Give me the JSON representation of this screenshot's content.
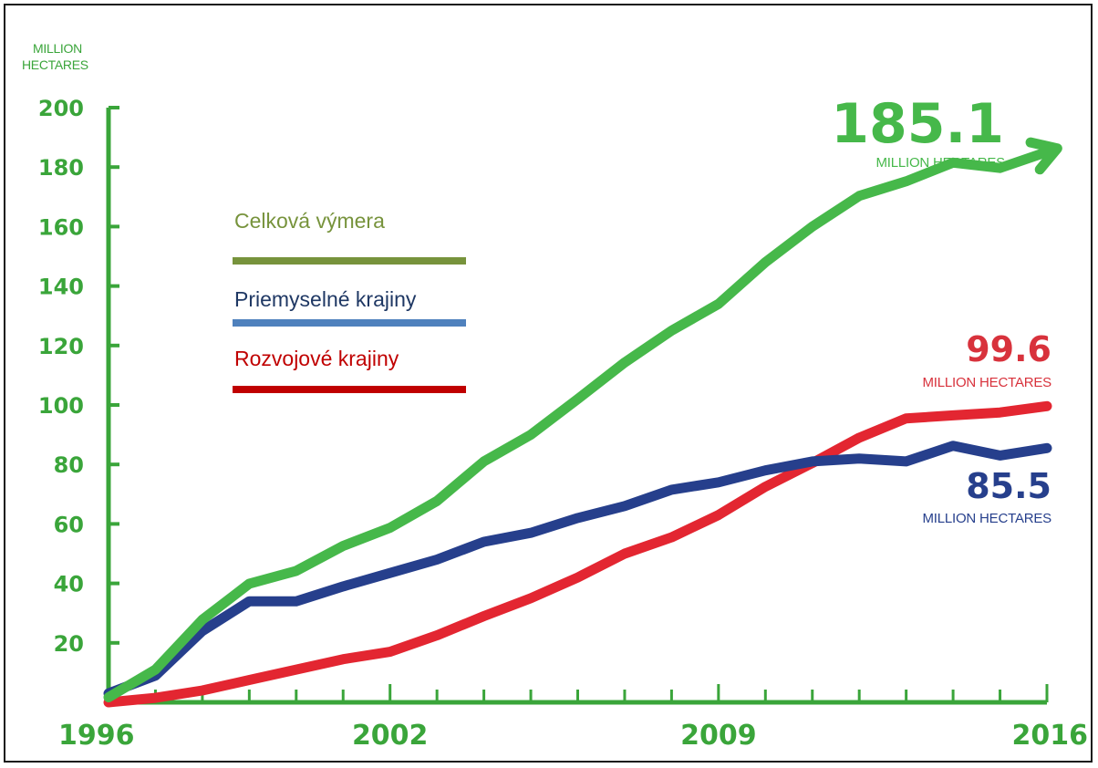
{
  "chart_data": {
    "type": "line",
    "y_unit_label": [
      "MILLION",
      "HECTARES"
    ],
    "x": [
      1996,
      1997,
      1998,
      1999,
      2000,
      2001,
      2002,
      2003,
      2004,
      2005,
      2006,
      2007,
      2008,
      2009,
      2010,
      2011,
      2012,
      2013,
      2014,
      2015,
      2016
    ],
    "x_tick_labels": [
      "1996",
      "2002",
      "2009",
      "2016"
    ],
    "x_tick_values": [
      1996,
      2002,
      2009,
      2016
    ],
    "y_tick_values": [
      20,
      40,
      60,
      80,
      100,
      120,
      140,
      160,
      180,
      200
    ],
    "ylim": [
      0,
      200
    ],
    "xlim": [
      1996,
      2016
    ],
    "series": [
      {
        "key": "total",
        "name": "Celková výmera",
        "color": "#46b84a",
        "legend_color": "#77933c",
        "values": [
          1.7,
          11,
          27.8,
          39.9,
          44.2,
          52.6,
          58.7,
          67.7,
          81,
          90,
          102,
          114.3,
          125,
          134,
          148,
          160,
          170.3,
          175.2,
          181.5,
          179.7,
          185.1
        ]
      },
      {
        "key": "industrial",
        "name": "Priemyselné krajiny",
        "color": "#263f8c",
        "legend_color": "#4f81bd",
        "values": [
          3,
          9,
          24,
          34,
          34,
          39,
          43.5,
          48,
          54,
          57,
          62,
          66,
          71.5,
          74,
          78,
          81,
          82,
          81,
          86.3,
          83,
          85.5
        ]
      },
      {
        "key": "developing",
        "name": "Rozvojové krajiny",
        "color": "#e32631",
        "legend_color": "#c00000",
        "values": [
          0,
          1.5,
          4,
          7.5,
          11,
          14.5,
          17,
          22.5,
          29,
          35,
          42,
          50,
          55.5,
          63,
          72.5,
          80.5,
          89,
          95.5,
          96.5,
          97.5,
          99.6
        ]
      }
    ],
    "annotations": [
      {
        "series": "total",
        "value": "185.1",
        "unit": "MILLION HECTARES"
      },
      {
        "series": "developing",
        "value": "99.6",
        "unit": "MILLION HECTARES"
      },
      {
        "series": "industrial",
        "value": "85.5",
        "unit": "MILLION HECTARES"
      }
    ],
    "legend_placement": "upper-left inside plot",
    "grid": false
  }
}
